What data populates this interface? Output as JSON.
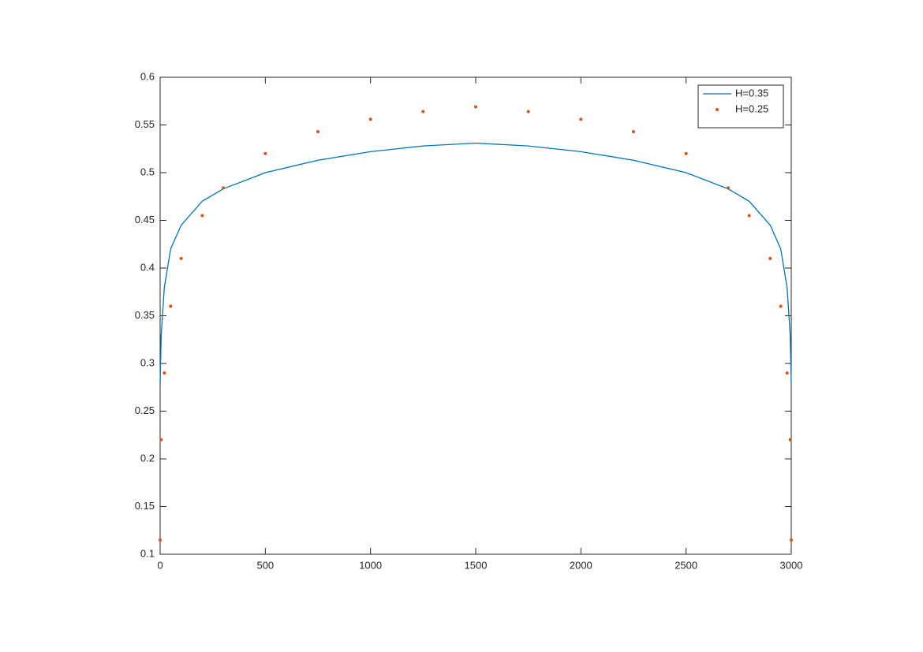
{
  "chart_data": {
    "type": "line",
    "x": [
      0,
      5,
      20,
      50,
      100,
      200,
      300,
      500,
      750,
      1000,
      1250,
      1500,
      1750,
      2000,
      2250,
      2500,
      2700,
      2800,
      2900,
      2950,
      2980,
      2995,
      3000
    ],
    "series": [
      {
        "name": "H=0.35",
        "color": "#0072bd",
        "style": "line",
        "values": [
          0.28,
          0.33,
          0.38,
          0.42,
          0.445,
          0.47,
          0.483,
          0.5,
          0.513,
          0.522,
          0.528,
          0.531,
          0.528,
          0.522,
          0.513,
          0.5,
          0.483,
          0.47,
          0.445,
          0.42,
          0.38,
          0.33,
          0.28
        ]
      },
      {
        "name": "H=0.25",
        "color": "#d95319",
        "style": "dots",
        "values": [
          0.115,
          0.22,
          0.29,
          0.36,
          0.41,
          0.455,
          0.484,
          0.52,
          0.543,
          0.556,
          0.564,
          0.569,
          0.564,
          0.556,
          0.543,
          0.52,
          0.484,
          0.455,
          0.41,
          0.36,
          0.29,
          0.22,
          0.115
        ]
      }
    ],
    "xlim": [
      0,
      3000
    ],
    "ylim": [
      0.1,
      0.6
    ],
    "xticks": [
      0,
      500,
      1000,
      1500,
      2000,
      2500,
      3000
    ],
    "yticks": [
      0.1,
      0.15,
      0.2,
      0.25,
      0.3,
      0.35,
      0.4,
      0.45,
      0.5,
      0.55,
      0.6
    ],
    "legend": "top-right"
  }
}
